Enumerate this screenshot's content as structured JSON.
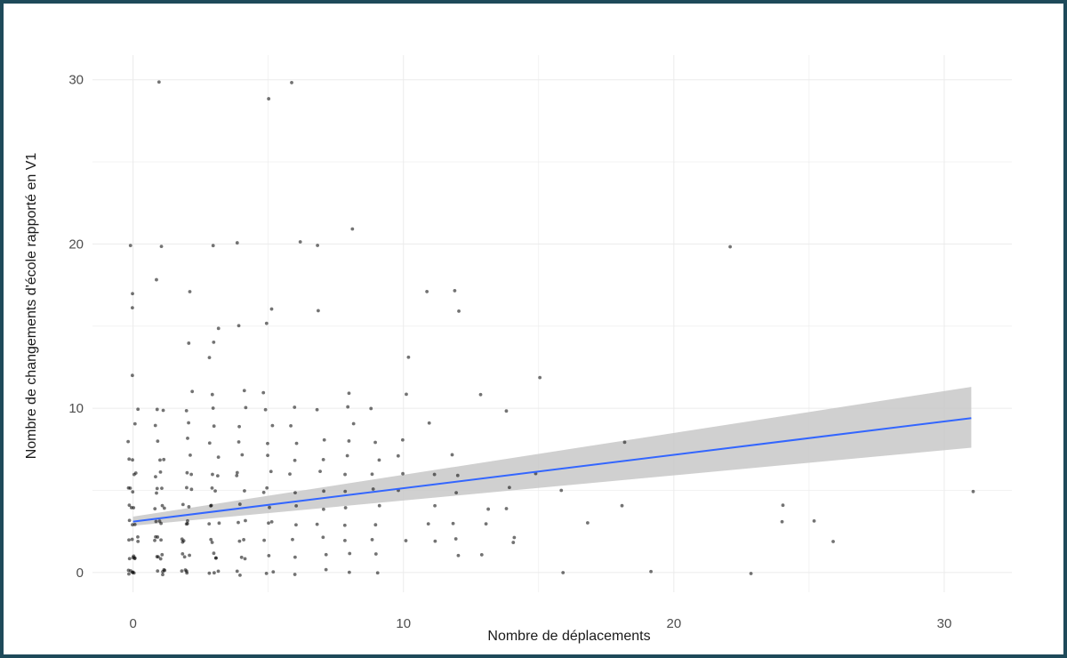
{
  "chart_data": {
    "type": "scatter",
    "title": "",
    "xlabel": "Nombre de déplacements",
    "ylabel": "Nombre de changements d'école rapporté en V1",
    "xlim": [
      -1.5,
      32.5
    ],
    "ylim": [
      -1.2,
      31.5
    ],
    "x_ticks": [
      "0",
      "10",
      "20",
      "30"
    ],
    "y_ticks": [
      "0",
      "10",
      "20",
      "30"
    ],
    "grid": true,
    "legend": "none",
    "colors": {
      "points": "#000000",
      "trend_line": "#3366ff",
      "confidence_band": "#c8c8c8",
      "grid": "#ebebeb",
      "frame": "#1e4a5a"
    },
    "points": [
      [
        0,
        0
      ],
      [
        0,
        0
      ],
      [
        0,
        0
      ],
      [
        0,
        0
      ],
      [
        0,
        0
      ],
      [
        0,
        0
      ],
      [
        0,
        1
      ],
      [
        0,
        1
      ],
      [
        0,
        1
      ],
      [
        0,
        1
      ],
      [
        0,
        1
      ],
      [
        0,
        2
      ],
      [
        0,
        2
      ],
      [
        0,
        2
      ],
      [
        0,
        2
      ],
      [
        0,
        3
      ],
      [
        0,
        3
      ],
      [
        0,
        3
      ],
      [
        0,
        4
      ],
      [
        0,
        4
      ],
      [
        0,
        4
      ],
      [
        0,
        5
      ],
      [
        0,
        5
      ],
      [
        0,
        5
      ],
      [
        0,
        6
      ],
      [
        0,
        6
      ],
      [
        0,
        7
      ],
      [
        0,
        7
      ],
      [
        0,
        8
      ],
      [
        0,
        9
      ],
      [
        0,
        10
      ],
      [
        0,
        12
      ],
      [
        0,
        16
      ],
      [
        0,
        17
      ],
      [
        0,
        20
      ],
      [
        1,
        0
      ],
      [
        1,
        0
      ],
      [
        1,
        0
      ],
      [
        1,
        0
      ],
      [
        1,
        0
      ],
      [
        1,
        1
      ],
      [
        1,
        1
      ],
      [
        1,
        1
      ],
      [
        1,
        1
      ],
      [
        1,
        2
      ],
      [
        1,
        2
      ],
      [
        1,
        2
      ],
      [
        1,
        2
      ],
      [
        1,
        3
      ],
      [
        1,
        3
      ],
      [
        1,
        3
      ],
      [
        1,
        4
      ],
      [
        1,
        4
      ],
      [
        1,
        4
      ],
      [
        1,
        5
      ],
      [
        1,
        5
      ],
      [
        1,
        5
      ],
      [
        1,
        6
      ],
      [
        1,
        6
      ],
      [
        1,
        7
      ],
      [
        1,
        7
      ],
      [
        1,
        8
      ],
      [
        1,
        9
      ],
      [
        1,
        10
      ],
      [
        1,
        10
      ],
      [
        1,
        18
      ],
      [
        1,
        20
      ],
      [
        1,
        30
      ],
      [
        2,
        0
      ],
      [
        2,
        0
      ],
      [
        2,
        0
      ],
      [
        2,
        0
      ],
      [
        2,
        1
      ],
      [
        2,
        1
      ],
      [
        2,
        1
      ],
      [
        2,
        2
      ],
      [
        2,
        2
      ],
      [
        2,
        2
      ],
      [
        2,
        3
      ],
      [
        2,
        3
      ],
      [
        2,
        3
      ],
      [
        2,
        4
      ],
      [
        2,
        4
      ],
      [
        2,
        5
      ],
      [
        2,
        5
      ],
      [
        2,
        6
      ],
      [
        2,
        6
      ],
      [
        2,
        7
      ],
      [
        2,
        8
      ],
      [
        2,
        9
      ],
      [
        2,
        10
      ],
      [
        2,
        11
      ],
      [
        2,
        14
      ],
      [
        2,
        17
      ],
      [
        3,
        0
      ],
      [
        3,
        0
      ],
      [
        3,
        0
      ],
      [
        3,
        1
      ],
      [
        3,
        1
      ],
      [
        3,
        1
      ],
      [
        3,
        2
      ],
      [
        3,
        2
      ],
      [
        3,
        3
      ],
      [
        3,
        3
      ],
      [
        3,
        4
      ],
      [
        3,
        4
      ],
      [
        3,
        5
      ],
      [
        3,
        5
      ],
      [
        3,
        6
      ],
      [
        3,
        6
      ],
      [
        3,
        7
      ],
      [
        3,
        8
      ],
      [
        3,
        9
      ],
      [
        3,
        10
      ],
      [
        3,
        11
      ],
      [
        3,
        13
      ],
      [
        3,
        14
      ],
      [
        3,
        15
      ],
      [
        3,
        20
      ],
      [
        4,
        0
      ],
      [
        4,
        0
      ],
      [
        4,
        1
      ],
      [
        4,
        1
      ],
      [
        4,
        2
      ],
      [
        4,
        2
      ],
      [
        4,
        3
      ],
      [
        4,
        3
      ],
      [
        4,
        4
      ],
      [
        4,
        5
      ],
      [
        4,
        6
      ],
      [
        4,
        6
      ],
      [
        4,
        7
      ],
      [
        4,
        8
      ],
      [
        4,
        9
      ],
      [
        4,
        10
      ],
      [
        4,
        11
      ],
      [
        4,
        15
      ],
      [
        4,
        20
      ],
      [
        5,
        0
      ],
      [
        5,
        0
      ],
      [
        5,
        1
      ],
      [
        5,
        2
      ],
      [
        5,
        3
      ],
      [
        5,
        3
      ],
      [
        5,
        4
      ],
      [
        5,
        5
      ],
      [
        5,
        5
      ],
      [
        5,
        6
      ],
      [
        5,
        7
      ],
      [
        5,
        8
      ],
      [
        5,
        9
      ],
      [
        5,
        10
      ],
      [
        5,
        11
      ],
      [
        5,
        15
      ],
      [
        5,
        16
      ],
      [
        5,
        29
      ],
      [
        6,
        0
      ],
      [
        6,
        1
      ],
      [
        6,
        2
      ],
      [
        6,
        3
      ],
      [
        6,
        4
      ],
      [
        6,
        5
      ],
      [
        6,
        6
      ],
      [
        6,
        7
      ],
      [
        6,
        8
      ],
      [
        6,
        9
      ],
      [
        6,
        10
      ],
      [
        6,
        20
      ],
      [
        6,
        30
      ],
      [
        7,
        0
      ],
      [
        7,
        1
      ],
      [
        7,
        2
      ],
      [
        7,
        3
      ],
      [
        7,
        4
      ],
      [
        7,
        5
      ],
      [
        7,
        6
      ],
      [
        7,
        7
      ],
      [
        7,
        8
      ],
      [
        7,
        10
      ],
      [
        7,
        16
      ],
      [
        7,
        20
      ],
      [
        8,
        0
      ],
      [
        8,
        1
      ],
      [
        8,
        2
      ],
      [
        8,
        3
      ],
      [
        8,
        4
      ],
      [
        8,
        5
      ],
      [
        8,
        6
      ],
      [
        8,
        7
      ],
      [
        8,
        8
      ],
      [
        8,
        9
      ],
      [
        8,
        10
      ],
      [
        8,
        11
      ],
      [
        8,
        21
      ],
      [
        9,
        0
      ],
      [
        9,
        1
      ],
      [
        9,
        2
      ],
      [
        9,
        3
      ],
      [
        9,
        4
      ],
      [
        9,
        5
      ],
      [
        9,
        6
      ],
      [
        9,
        7
      ],
      [
        9,
        8
      ],
      [
        9,
        10
      ],
      [
        10,
        2
      ],
      [
        10,
        5
      ],
      [
        10,
        6
      ],
      [
        10,
        7
      ],
      [
        10,
        8
      ],
      [
        10,
        11
      ],
      [
        10,
        13
      ],
      [
        11,
        2
      ],
      [
        11,
        3
      ],
      [
        11,
        4
      ],
      [
        11,
        6
      ],
      [
        11,
        9
      ],
      [
        11,
        17
      ],
      [
        12,
        1
      ],
      [
        12,
        2
      ],
      [
        12,
        3
      ],
      [
        12,
        5
      ],
      [
        12,
        6
      ],
      [
        12,
        7
      ],
      [
        12,
        16
      ],
      [
        12,
        17
      ],
      [
        13,
        1
      ],
      [
        13,
        3
      ],
      [
        13,
        4
      ],
      [
        13,
        11
      ],
      [
        14,
        2
      ],
      [
        14,
        2
      ],
      [
        14,
        4
      ],
      [
        14,
        5
      ],
      [
        14,
        10
      ],
      [
        15,
        6
      ],
      [
        15,
        12
      ],
      [
        16,
        0
      ],
      [
        16,
        5
      ],
      [
        17,
        3
      ],
      [
        18,
        4
      ],
      [
        18,
        8
      ],
      [
        19,
        0
      ],
      [
        22,
        20
      ],
      [
        23,
        0
      ],
      [
        24,
        3
      ],
      [
        24,
        4
      ],
      [
        25,
        3
      ],
      [
        26,
        2
      ],
      [
        31,
        5
      ]
    ],
    "trend": {
      "method": "lm",
      "x": [
        0,
        31
      ],
      "y": [
        3.1,
        9.4
      ],
      "ci_lower": [
        2.85,
        7.6
      ],
      "ci_upper": [
        3.4,
        11.3
      ]
    }
  }
}
